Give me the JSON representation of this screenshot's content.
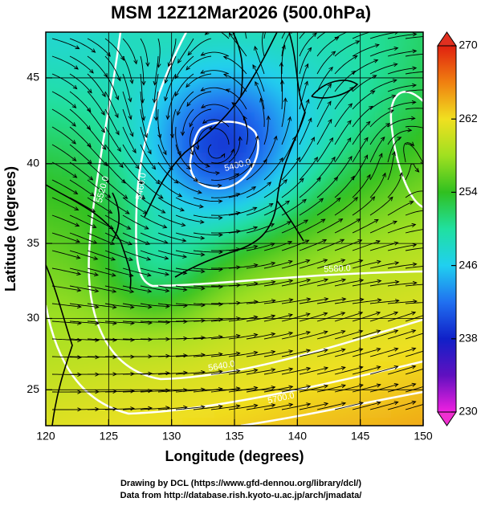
{
  "title": "MSM 12Z12Mar2026 (500.0hPa)",
  "x_label": "Longitude (degrees)",
  "y_label": "Latitude  (degrees)",
  "xlim": [
    120,
    150
  ],
  "ylim": [
    22.4,
    47.5
  ],
  "xticks": [
    120,
    125,
    130,
    135,
    140,
    145,
    150
  ],
  "yticks": [
    25,
    30,
    35,
    40,
    45
  ],
  "grid": true,
  "colorbar": {
    "lim": [
      230,
      270
    ],
    "ticks": [
      230,
      238,
      246,
      254,
      262,
      270
    ]
  },
  "contour_labels": [
    "5400.0",
    "5460.0",
    "5520.0",
    "5580.0",
    "5640.0",
    "5700.0"
  ],
  "footer": [
    "Drawing by DCL (https://www.gfd-dennou.org/library/dcl/)",
    "Data from http://database.rish.kyoto-u.ac.jp/arch/jmadata/"
  ]
}
